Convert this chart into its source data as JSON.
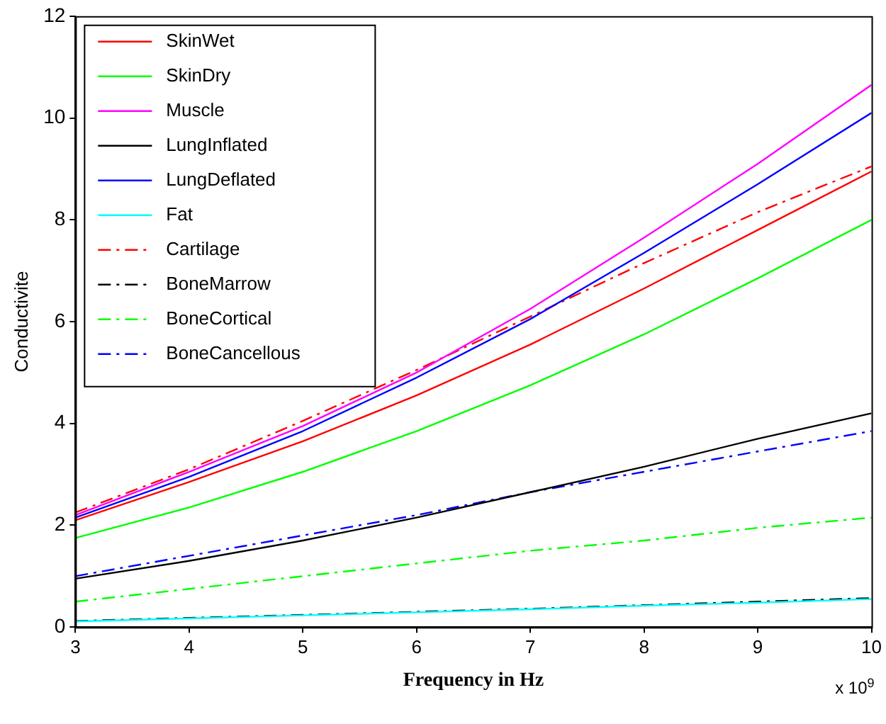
{
  "chart_data": {
    "type": "line",
    "xlabel": "Frequency in Hz",
    "ylabel": "Conductivite",
    "annotations": [
      "x 10$^{9}$"
    ],
    "x": [
      3,
      4,
      5,
      6,
      7,
      8,
      9,
      10
    ],
    "xlim": [
      3,
      10
    ],
    "xticks": [
      3,
      4,
      5,
      6,
      7,
      8,
      9,
      10
    ],
    "ylim": [
      0,
      12
    ],
    "yticks": [
      0,
      2,
      4,
      6,
      8,
      10,
      12
    ],
    "grid": false,
    "legend": "top left",
    "marker": "none",
    "series": [
      {
        "name": "SkinWet",
        "color": "#ff0000",
        "line_style": "solid",
        "values": [
          2.1,
          2.85,
          3.65,
          4.55,
          5.55,
          6.65,
          7.8,
          8.95
        ]
      },
      {
        "name": "SkinDry",
        "color": "#00ff00",
        "line_style": "solid",
        "values": [
          1.75,
          2.35,
          3.05,
          3.85,
          4.75,
          5.75,
          6.85,
          8.0
        ]
      },
      {
        "name": "Muscle",
        "color": "#ff00ff",
        "line_style": "solid",
        "values": [
          2.2,
          3.05,
          3.95,
          5.0,
          6.25,
          7.65,
          9.1,
          10.65
        ]
      },
      {
        "name": "LungInflated",
        "color": "#000000",
        "line_style": "solid",
        "values": [
          0.95,
          1.3,
          1.7,
          2.15,
          2.65,
          3.15,
          3.7,
          4.2
        ]
      },
      {
        "name": "LungDeflated",
        "color": "#0000ff",
        "line_style": "solid",
        "values": [
          2.15,
          2.95,
          3.85,
          4.9,
          6.05,
          7.35,
          8.7,
          10.1
        ]
      },
      {
        "name": "Fat",
        "color": "#00ffff",
        "line_style": "solid",
        "values": [
          0.11,
          0.17,
          0.23,
          0.29,
          0.35,
          0.42,
          0.48,
          0.55
        ]
      },
      {
        "name": "Cartilage",
        "color": "#ff0000",
        "line_style": "dashed",
        "values": [
          2.25,
          3.1,
          4.05,
          5.05,
          6.1,
          7.15,
          8.15,
          9.05
        ]
      },
      {
        "name": "BoneMarrow",
        "color": "#000000",
        "line_style": "dashed",
        "values": [
          0.12,
          0.18,
          0.24,
          0.3,
          0.36,
          0.43,
          0.5,
          0.57
        ]
      },
      {
        "name": "BoneCortical",
        "color": "#00ff00",
        "line_style": "dashed",
        "values": [
          0.5,
          0.75,
          1.0,
          1.25,
          1.5,
          1.7,
          1.95,
          2.15
        ]
      },
      {
        "name": "BoneCancellous",
        "color": "#0000ff",
        "line_style": "dashed",
        "values": [
          1.0,
          1.4,
          1.8,
          2.2,
          2.65,
          3.05,
          3.45,
          3.85
        ]
      }
    ]
  }
}
